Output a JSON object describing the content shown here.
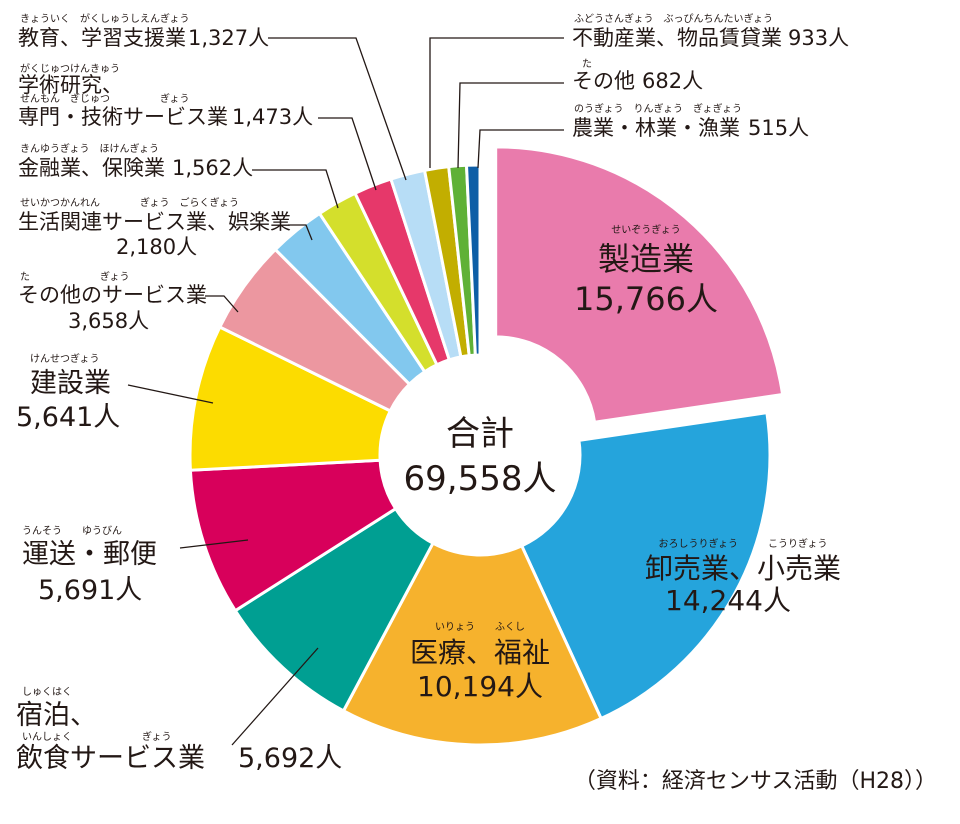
{
  "chart_data": {
    "type": "pie",
    "style": "donut",
    "total": {
      "title": "合計",
      "value": "69,558人"
    },
    "source": "（資料：経済センサス活動（H28））",
    "slices": [
      {
        "name": "製造業",
        "ruby": "せいぞうぎょう",
        "value": 15766,
        "value_label": "15,766人",
        "color": "#e97bac",
        "exploded": true
      },
      {
        "name": "卸売業、小売業",
        "ruby": "おろしうりぎょう　　　こうりぎょう",
        "value": 14244,
        "value_label": "14,244人",
        "color": "#25a4dc"
      },
      {
        "name": "医療、福祉",
        "ruby": "いりょう　　ふくし",
        "value": 10194,
        "value_label": "10,194人",
        "color": "#f6b22d"
      },
      {
        "name": "宿泊、飲食サービス業",
        "ruby": "しゅくはく",
        "ruby2": "いんしょく　　　　　　　ぎょう",
        "value": 5692,
        "value_label": "5,692人",
        "color": "#009f92"
      },
      {
        "name": "運送・郵便",
        "ruby": "うんそう　　ゆうびん",
        "value": 5691,
        "value_label": "5,691人",
        "color": "#d8005b"
      },
      {
        "name": "建設業",
        "ruby": "けんせつぎょう",
        "value": 5641,
        "value_label": "5,641人",
        "color": "#fcdc00"
      },
      {
        "name": "その他のサービス業",
        "ruby": "た　　　　　　　ぎょう",
        "value": 3658,
        "value_label": "3,658人",
        "color": "#ec97a0"
      },
      {
        "name": "生活関連サービス業、娯楽業",
        "ruby": "せいかつかんれん　　　　ぎょう　ごらくぎょう",
        "value": 2180,
        "value_label": "2,180人",
        "color": "#82c8ee"
      },
      {
        "name": "金融業、保険業",
        "ruby": "きんゆうぎょう　ほけんぎょう",
        "value": 1562,
        "value_label": "1,562人",
        "color": "#d4df2c"
      },
      {
        "name": "学術研究、専門・技術サービス業",
        "ruby": "がくじゅつけんきゅう",
        "ruby2": "せんもん　ぎじゅつ　　　　　ぎょう",
        "value": 1473,
        "value_label": "1,473人",
        "color": "#e6386a"
      },
      {
        "name": "教育、学習支援業",
        "ruby": "きょういく　がくしゅうしえんぎょう",
        "value": 1327,
        "value_label": "1,327人",
        "color": "#b7ddf6"
      },
      {
        "name": "不動産業、物品賃貸業",
        "ruby": "ふどうさんぎょう　ぶっぴんちんたいぎょう",
        "value": 933,
        "value_label": "933人",
        "color": "#c2ae00"
      },
      {
        "name": "その他",
        "ruby": "た",
        "value": 682,
        "value_label": "682人",
        "color": "#5fb136"
      },
      {
        "name": "農業・林業・漁業",
        "ruby": "のうぎょう　りんぎょう　ぎょぎょう",
        "value": 515,
        "value_label": "515人",
        "color": "#0d5ea6"
      }
    ]
  }
}
